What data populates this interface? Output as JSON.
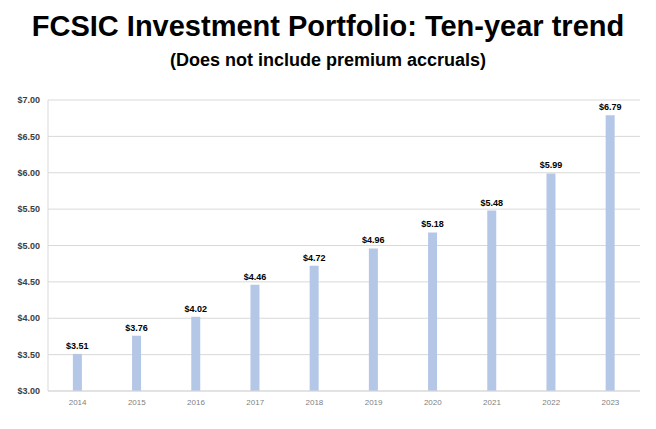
{
  "chart_data": {
    "type": "bar",
    "title": "FCSIC Investment Portfolio: Ten-year trend",
    "subtitle": "(Does not include premium accruals)",
    "categories": [
      "2014",
      "2015",
      "2016",
      "2017",
      "2018",
      "2019",
      "2020",
      "2021",
      "2022",
      "2023"
    ],
    "values": [
      3.51,
      3.76,
      4.02,
      4.46,
      4.72,
      4.96,
      5.18,
      5.48,
      5.99,
      6.79
    ],
    "value_labels": [
      "$3.51",
      "$3.76",
      "$4.02",
      "$4.46",
      "$4.72",
      "$4.96",
      "$5.18",
      "$5.48",
      "$5.99",
      "$6.79"
    ],
    "color": "#b4c7e7",
    "ylim": [
      3,
      7
    ],
    "yticks": [
      {
        "value": 3,
        "label": "$3.00"
      },
      {
        "value": 3.5,
        "label": "$3.50"
      },
      {
        "value": 4,
        "label": "$4.00"
      },
      {
        "value": 4.5,
        "label": "$4.50"
      },
      {
        "value": 5,
        "label": "$5.00"
      },
      {
        "value": 5.5,
        "label": "$5.50"
      },
      {
        "value": 6,
        "label": "$6.00"
      },
      {
        "value": 6.5,
        "label": "$6.50"
      },
      {
        "value": 7,
        "label": "$7.00"
      }
    ],
    "grid": true,
    "data_labels": true
  }
}
